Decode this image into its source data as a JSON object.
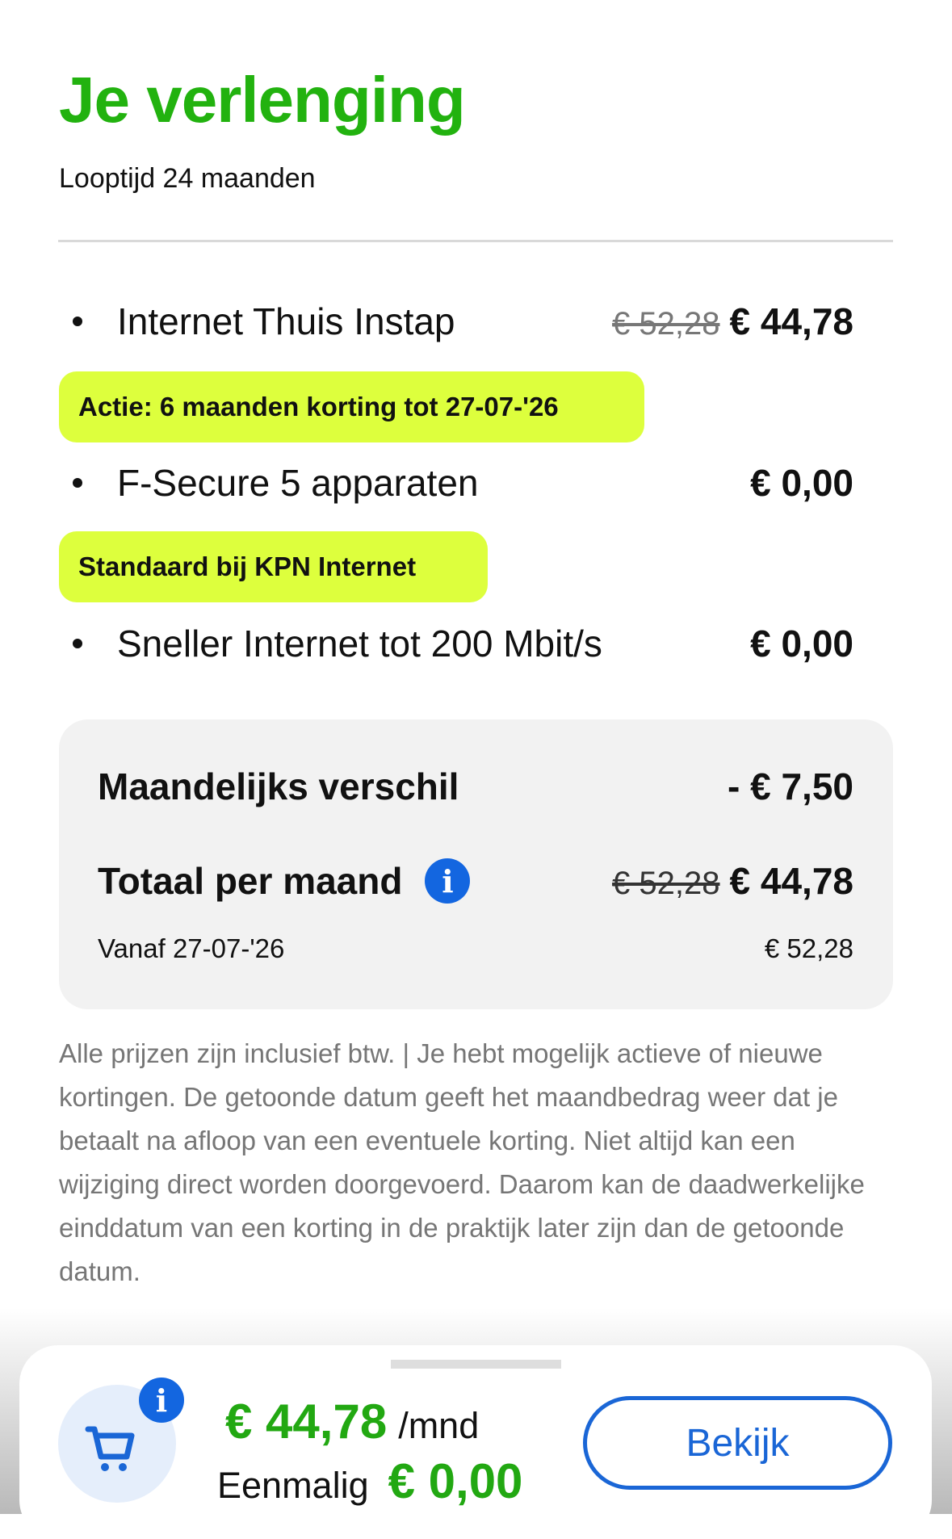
{
  "header": {
    "title": "Je verlenging",
    "subtitle": "Looptijd 24 maanden"
  },
  "items": [
    {
      "label": "Internet Thuis Instap",
      "old_price": "€ 52,28",
      "price": "€ 44,78",
      "badge": "Actie: 6 maanden korting tot 27-07-'26"
    },
    {
      "label": "F-Secure 5 apparaten",
      "price": "€ 0,00",
      "badge": "Standaard bij KPN Internet"
    },
    {
      "label": "Sneller Internet tot 200 Mbit/s",
      "price": "€ 0,00"
    }
  ],
  "summary": {
    "diff_label": "Maandelijks verschil",
    "diff_value": "- € 7,50",
    "total_label": "Totaal per maand",
    "total_old": "€ 52,28",
    "total_value": "€ 44,78",
    "from_label": "Vanaf 27-07-'26",
    "from_value": "€ 52,28",
    "info_icon": "i"
  },
  "disclaimer": "Alle prijzen zijn inclusief btw. | Je hebt mogelijk actieve of nieuwe kortingen. De getoonde datum geeft het maandbedrag weer dat je betaalt na afloop van een eventuele korting. Niet altijd kan een wijziging direct worden doorgevoerd. Daarom kan de daadwerkelijke einddatum van een korting in de praktijk later zijn dan de getoonde datum.",
  "cart_bar": {
    "monthly": "€ 44,78",
    "monthly_unit": "/mnd",
    "once_label": "Eenmalig",
    "once_value": "€ 0,00",
    "button": "Bekijk",
    "info_icon": "i"
  },
  "colors": {
    "brand_green": "#22b20f",
    "badge": "#ddff3d",
    "accent_blue": "#1a66d6"
  }
}
